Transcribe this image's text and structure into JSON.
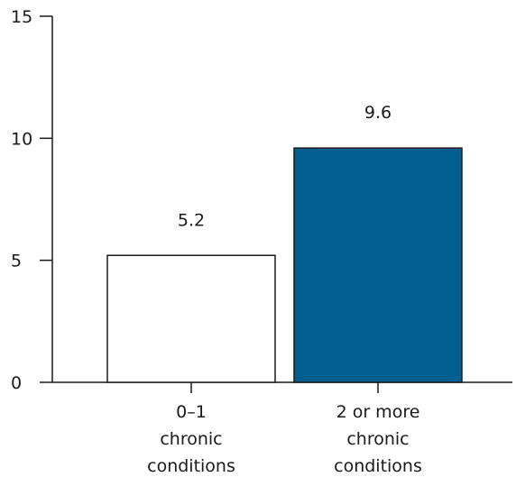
{
  "chart_data": {
    "type": "bar",
    "title": "",
    "xlabel": "",
    "ylabel": "",
    "ylim": [
      0,
      15
    ],
    "yticks": [
      0,
      5,
      10,
      15
    ],
    "grid": false,
    "categories": [
      [
        "0–1",
        "chronic",
        "conditions"
      ],
      [
        "2 or more",
        "chronic",
        "conditions"
      ]
    ],
    "values": [
      5.2,
      9.6
    ],
    "value_labels": [
      "5.2",
      "9.6"
    ],
    "colors": {
      "bar_fills": [
        "#ffffff",
        "#005f8f"
      ],
      "bar_stroke": "#1a1a1a",
      "axis": "#1a1a1a"
    }
  }
}
